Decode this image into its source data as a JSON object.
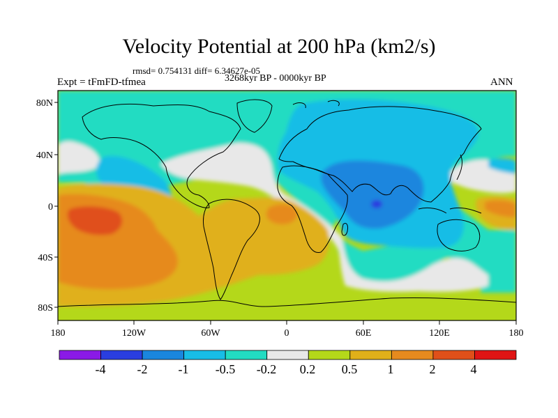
{
  "title": "Velocity Potential at 200 hPa (km2/s)",
  "stats": "rmsd= 0.754131 diff= 6.34627e-05",
  "period": "3268kyr BP - 0000kyr BP",
  "experiment": "Expt = tFmFD-tfmea",
  "season": "ANN",
  "lat_ticks": [
    "80N",
    "40N",
    "0",
    "40S",
    "80S"
  ],
  "lon_ticks": [
    "180",
    "120W",
    "60W",
    "0",
    "60E",
    "120E",
    "180"
  ],
  "colorbar": {
    "levels": [
      "-4",
      "-2",
      "-1",
      "-0.5",
      "-0.2",
      "0.2",
      "0.5",
      "1",
      "2",
      "4"
    ],
    "colors": [
      "#8a1ae6",
      "#2a3ee0",
      "#1a86de",
      "#18bde6",
      "#22dcc2",
      "#e8e8e8",
      "#b4d81a",
      "#e0b01a",
      "#e68a1e",
      "#e0501a",
      "#e01414"
    ]
  },
  "colors": {
    "neg_strong": "#2a3ee0",
    "neg_mid": "#1a86de",
    "neg_weak": "#18bde6",
    "neg_slight": "#22dcc2",
    "neutral": "#e8e8e8",
    "pos_slight": "#b4d81a",
    "pos_weak": "#e0b01a",
    "pos_mid": "#e68a1e",
    "pos_strong": "#e0501a",
    "coast": "#000000"
  }
}
